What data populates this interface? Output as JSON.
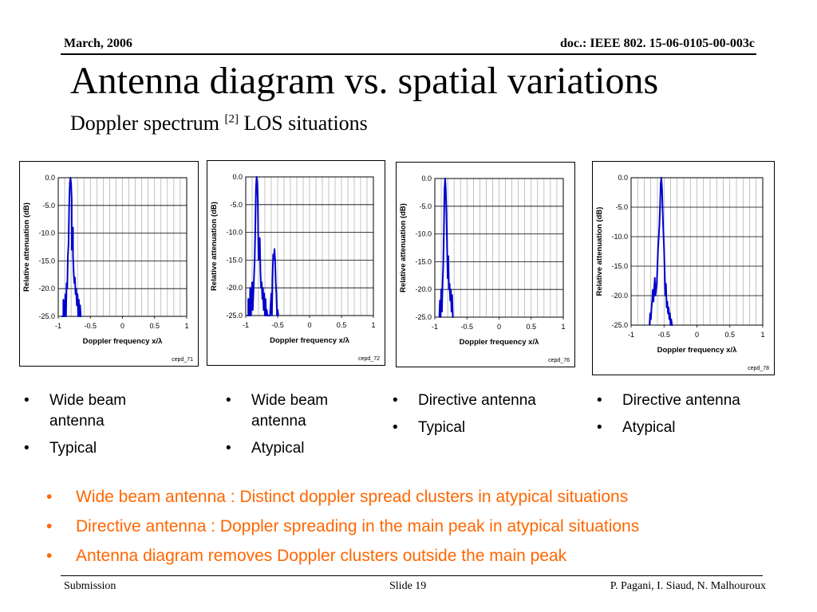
{
  "header": {
    "date": "March, 2006",
    "doc_id": "doc.: IEEE 802. 15-06-0105-00-003c"
  },
  "title": "Antenna diagram vs. spatial variations",
  "subtitle": {
    "text": "Doppler spectrum",
    "ref": "[2]",
    "suffix": "LOS situations"
  },
  "colors": {
    "trace": "#0000cc",
    "notes": "#ff6600"
  },
  "chart_data": [
    {
      "type": "line",
      "id": "cepd_71",
      "xlabel": "Doppler frequency x/λ",
      "ylabel": "Relative attenuation (dB)",
      "xlim": [
        -1,
        1
      ],
      "ylim": [
        -25,
        0
      ],
      "xticks": [
        -1,
        -0.5,
        0,
        0.5,
        1
      ],
      "xtick_labels": [
        "-1",
        "-0.5",
        "0",
        "0.5",
        "1"
      ],
      "yticks": [
        0,
        -5,
        -10,
        -15,
        -20,
        -25
      ],
      "ytick_labels": [
        "0.0",
        "-5.0",
        "-10.0",
        "-15.0",
        "-20.0",
        "-25.0"
      ],
      "grid": true,
      "x": [
        -0.95,
        -0.92,
        -0.92,
        -0.9,
        -0.89,
        -0.88,
        -0.87,
        -0.86,
        -0.85,
        -0.84,
        -0.83,
        -0.82,
        -0.81,
        -0.8,
        -0.79,
        -0.79,
        -0.78,
        -0.77,
        -0.77,
        -0.76,
        -0.75,
        -0.74,
        -0.73,
        -0.72,
        -0.71,
        -0.7,
        -0.69,
        -0.68,
        -0.67,
        -0.66,
        -0.65,
        -0.64
      ],
      "y": [
        -25,
        -25,
        -22,
        -25,
        -21,
        -25,
        -19,
        -20,
        -14,
        -12,
        -5,
        -1,
        0,
        -1,
        -4,
        -13,
        -12,
        -9,
        -14,
        -17,
        -19,
        -18,
        -21,
        -20,
        -23,
        -21,
        -25,
        -22,
        -25,
        -23,
        -25,
        -25
      ]
    },
    {
      "type": "line",
      "id": "cepd_72",
      "xlabel": "Doppler frequency x/λ",
      "ylabel": "Relative attenuation (dB)",
      "xlim": [
        -1,
        1
      ],
      "ylim": [
        -25,
        0
      ],
      "xticks": [
        -1,
        -0.5,
        0,
        0.5,
        1
      ],
      "xtick_labels": [
        "-1",
        "-0.5",
        "0",
        "0.5",
        "1"
      ],
      "yticks": [
        0,
        -5,
        -10,
        -15,
        -20,
        -25
      ],
      "ytick_labels": [
        "0.0",
        "-5.0",
        "-10.0",
        "-15.0",
        "-20.0",
        "-25.0"
      ],
      "grid": true,
      "x": [
        -0.98,
        -0.96,
        -0.96,
        -0.94,
        -0.93,
        -0.92,
        -0.9,
        -0.89,
        -0.87,
        -0.86,
        -0.85,
        -0.84,
        -0.83,
        -0.82,
        -0.81,
        -0.8,
        -0.79,
        -0.78,
        -0.77,
        -0.76,
        -0.75,
        -0.74,
        -0.73,
        -0.72,
        -0.71,
        -0.7,
        -0.69,
        -0.68,
        -0.67,
        -0.66,
        -0.65,
        -0.62,
        -0.6,
        -0.59,
        -0.58,
        -0.57,
        -0.56,
        -0.55,
        -0.54,
        -0.53,
        -0.52,
        -0.51,
        -0.5,
        -0.49
      ],
      "y": [
        -25,
        -25,
        -22,
        -25,
        -20,
        -25,
        -19,
        -24,
        -18,
        -15,
        -9,
        -2,
        0,
        -1,
        -5,
        -15,
        -13,
        -11,
        -17,
        -20,
        -19,
        -22,
        -20,
        -24,
        -21,
        -25,
        -22,
        -25,
        -24,
        -25,
        -25,
        -25,
        -21,
        -25,
        -18,
        -14,
        -15,
        -13,
        -15,
        -19,
        -21,
        -25,
        -24,
        -25
      ]
    },
    {
      "type": "line",
      "id": "cepd_76",
      "xlabel": "Doppler frequency x/λ",
      "ylabel": "Relative attenuation (dB)",
      "xlim": [
        -1,
        1
      ],
      "ylim": [
        -25,
        0
      ],
      "xticks": [
        -1,
        -0.5,
        0,
        0.5,
        1
      ],
      "xtick_labels": [
        "-1",
        "-0.5",
        "0",
        "0.5",
        "1"
      ],
      "yticks": [
        0,
        -5,
        -10,
        -15,
        -20,
        -25
      ],
      "ytick_labels": [
        "0.0",
        "-5.0",
        "-10.0",
        "-15.0",
        "-20.0",
        "-25.0"
      ],
      "grid": true,
      "x": [
        -0.93,
        -0.92,
        -0.91,
        -0.9,
        -0.89,
        -0.88,
        -0.87,
        -0.86,
        -0.85,
        -0.84,
        -0.83,
        -0.82,
        -0.81,
        -0.8,
        -0.79,
        -0.78,
        -0.77,
        -0.76,
        -0.75,
        -0.74,
        -0.73,
        -0.72,
        -0.71
      ],
      "y": [
        -25,
        -22,
        -25,
        -20,
        -24,
        -19,
        -16,
        -10,
        -2,
        0,
        -2,
        -6,
        -12,
        -18,
        -14,
        -20,
        -19,
        -22,
        -20,
        -24,
        -21,
        -25,
        -25
      ]
    },
    {
      "type": "line",
      "id": "cepd_78",
      "xlabel": "Doppler frequency x/λ",
      "ylabel": "Relative attenuation (dB)",
      "xlim": [
        -1,
        1
      ],
      "ylim": [
        -25,
        0
      ],
      "xticks": [
        -1,
        -0.5,
        0,
        0.5,
        1
      ],
      "xtick_labels": [
        "-1",
        "-0.5",
        "0",
        "0.5",
        "1"
      ],
      "yticks": [
        0,
        -5,
        -10,
        -15,
        -20,
        -25
      ],
      "ytick_labels": [
        "0.0",
        "-5.0",
        "-10.0",
        "-15.0",
        "-20.0",
        "-25.0"
      ],
      "grid": true,
      "x": [
        -0.72,
        -0.71,
        -0.7,
        -0.69,
        -0.68,
        -0.67,
        -0.66,
        -0.65,
        -0.64,
        -0.63,
        -0.62,
        -0.61,
        -0.6,
        -0.59,
        -0.58,
        -0.57,
        -0.56,
        -0.55,
        -0.54,
        -0.53,
        -0.52,
        -0.51,
        -0.5,
        -0.49,
        -0.48,
        -0.47,
        -0.46,
        -0.45,
        -0.44,
        -0.43,
        -0.42,
        -0.41,
        -0.4,
        -0.39,
        -0.38,
        -0.37
      ],
      "y": [
        -25,
        -23,
        -24,
        -22,
        -21,
        -19,
        -21,
        -19,
        -17,
        -20,
        -19,
        -18,
        -15,
        -12,
        -10,
        -8,
        -5,
        -1,
        0,
        -2,
        -6,
        -9,
        -12,
        -16,
        -20,
        -18,
        -22,
        -21,
        -23,
        -22,
        -24,
        -23,
        -25,
        -24,
        -25,
        -25
      ]
    }
  ],
  "captions": [
    [
      "Wide beam antenna",
      "Typical"
    ],
    [
      "Wide beam antenna",
      "Atypical"
    ],
    [
      "Directive antenna",
      "Typical"
    ],
    [
      "Directive antenna",
      "Atypical"
    ]
  ],
  "notes": [
    "Wide beam antenna : Distinct doppler spread clusters in atypical situations",
    "Directive antenna : Doppler spreading in the main peak in atypical situations",
    "Antenna diagram  removes Doppler clusters outside the main peak"
  ],
  "footer": {
    "left": "Submission",
    "center": "Slide 19",
    "right": "P. Pagani, I. Siaud, N. Malhouroux"
  }
}
